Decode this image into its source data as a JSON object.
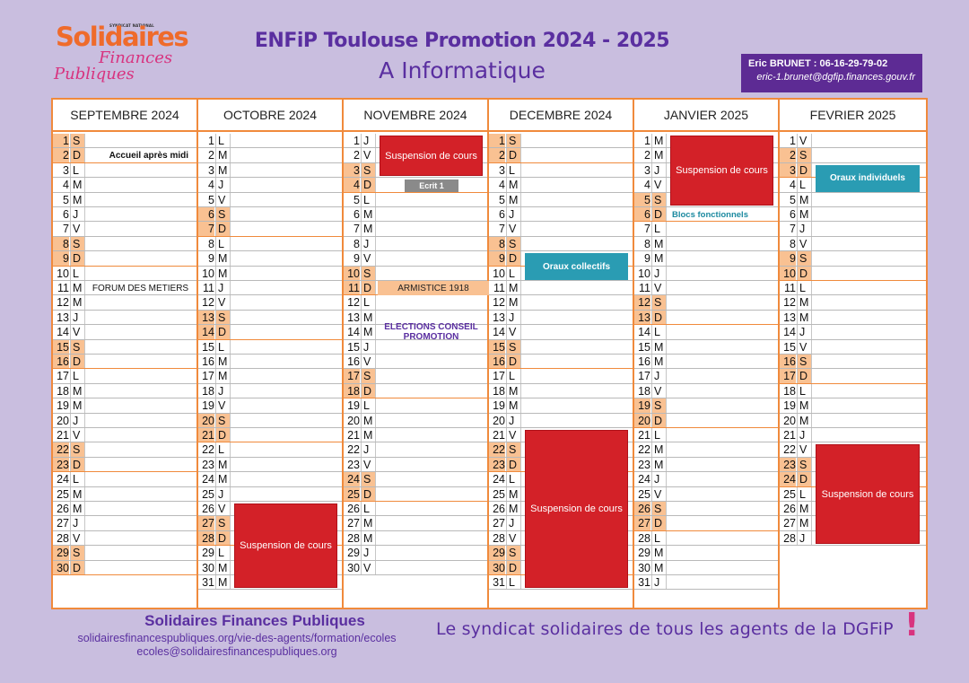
{
  "logo": {
    "syndicat": "SYNDICAT NATIONAL",
    "line1": "Solidaires",
    "line2": "Finances",
    "line3": "Publiques"
  },
  "title": "ENFiP Toulouse Promotion 2024 - 2025",
  "subtitle": "A Informatique",
  "contact": {
    "line1": "Eric BRUNET : 06-16-29-79-02",
    "line2": "eric-1.brunet@dgfip.finances.gouv.fr"
  },
  "colors": {
    "background": "#c9bedf",
    "grid": "#f08a3c",
    "weekend": "#f9c192",
    "suspension": "#d32128",
    "teal": "#2a9cb3",
    "purple": "#5a2fa0"
  },
  "months": [
    {
      "name": "SEPTEMBRE 2024",
      "days": 30,
      "first_dow": 6
    },
    {
      "name": "OCTOBRE 2024",
      "days": 31,
      "first_dow": 1
    },
    {
      "name": "NOVEMBRE 2024",
      "days": 30,
      "first_dow": 4
    },
    {
      "name": "DECEMBRE 2024",
      "days": 31,
      "first_dow": 6
    },
    {
      "name": "JANVIER 2025",
      "days": 31,
      "first_dow": 2
    },
    {
      "name": "FEVRIER 2025",
      "days": 28,
      "first_dow": 5
    }
  ],
  "day_letters": [
    "L",
    "M",
    "M",
    "J",
    "V",
    "S",
    "D"
  ],
  "events": [
    {
      "month": 0,
      "start": 2,
      "end": 2,
      "style": "text-bold",
      "label": "Accueil après midi",
      "align": "right"
    },
    {
      "month": 0,
      "start": 11,
      "end": 11,
      "style": "text",
      "label": "FORUM DES METIERS"
    },
    {
      "month": 1,
      "start": 26,
      "end": 31,
      "style": "red",
      "label": "Suspension de cours"
    },
    {
      "month": 2,
      "start": 1,
      "end": 3,
      "style": "red",
      "label": "Suspension de cours"
    },
    {
      "month": 2,
      "start": 4,
      "end": 4,
      "style": "grey",
      "label": "Ecrit 1"
    },
    {
      "month": 2,
      "start": 11,
      "end": 11,
      "style": "orange",
      "label": "ARMISTICE 1918"
    },
    {
      "month": 2,
      "start": 14,
      "end": 14,
      "style": "purple",
      "label": "ELECTIONS CONSEIL PROMOTION"
    },
    {
      "month": 3,
      "start": 9,
      "end": 10,
      "style": "teal",
      "label": "Oraux collectifs"
    },
    {
      "month": 3,
      "start": 21,
      "end": 31,
      "style": "red",
      "label": "Suspension de cours"
    },
    {
      "month": 4,
      "start": 1,
      "end": 5,
      "style": "red",
      "label": "Suspension de cours"
    },
    {
      "month": 4,
      "start": 6,
      "end": 6,
      "style": "tealtext",
      "label": "Blocs fonctionnels"
    },
    {
      "month": 5,
      "start": 3,
      "end": 4,
      "style": "teal",
      "label": "Oraux individuels"
    },
    {
      "month": 5,
      "start": 22,
      "end": 28,
      "style": "red",
      "label": "Suspension de cours"
    }
  ],
  "footer": {
    "org": "Solidaires Finances Publiques",
    "url": "solidairesfinancespubliques.org/vie-des-agents/formation/ecoles",
    "email": "ecoles@solidairesfinancespubliques.org",
    "slogan": "Le syndicat solidaires de tous les agents de la DGFiP",
    "bang": "!"
  }
}
